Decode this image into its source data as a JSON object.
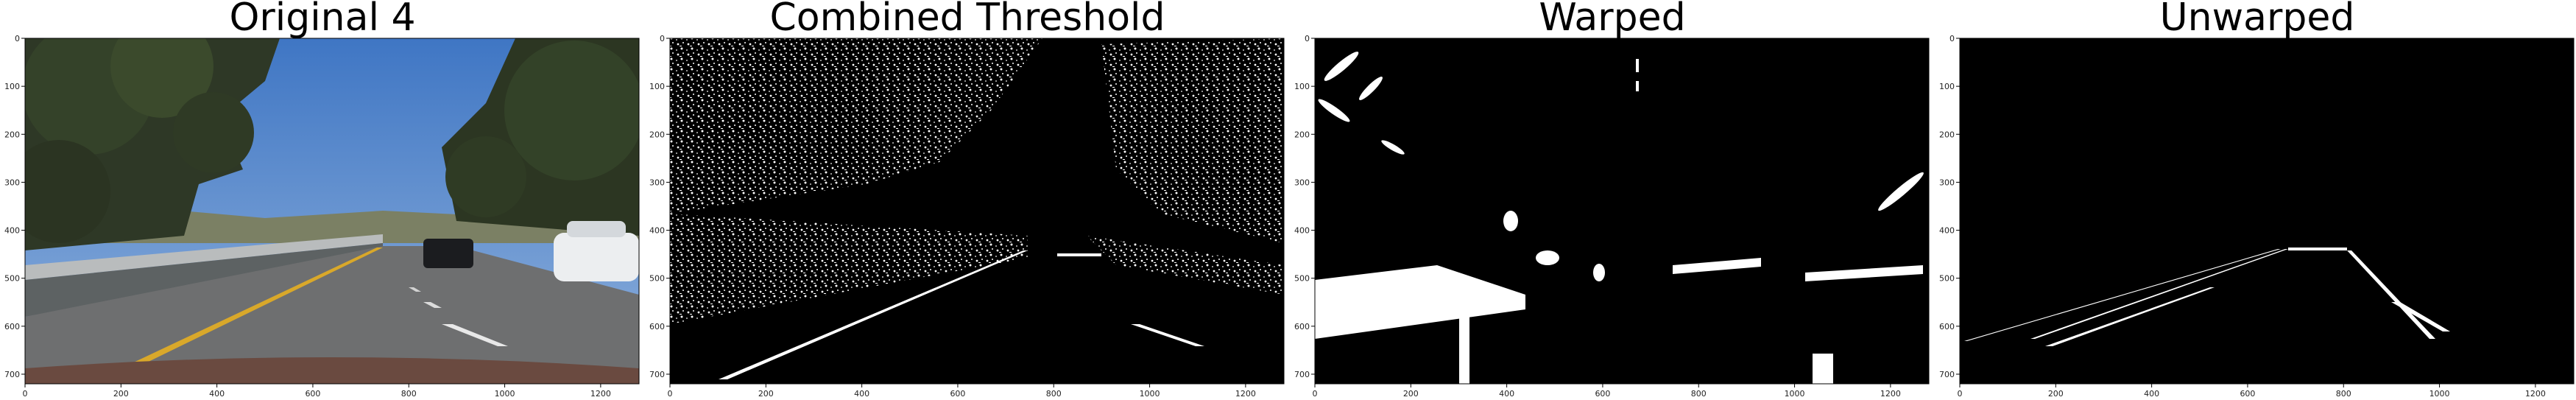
{
  "figure": {
    "panels": [
      {
        "title": "Original 4",
        "x_ticks": [
          "0",
          "200",
          "400",
          "600",
          "800",
          "1000",
          "1200"
        ],
        "y_ticks": [
          "0",
          "100",
          "200",
          "300",
          "400",
          "500",
          "600",
          "700"
        ],
        "x_range": [
          0,
          1280
        ],
        "y_range": [
          0,
          720
        ]
      },
      {
        "title": "Combined Threshold",
        "x_ticks": [
          "0",
          "200",
          "400",
          "600",
          "800",
          "1000",
          "1200"
        ],
        "y_ticks": [
          "0",
          "100",
          "200",
          "300",
          "400",
          "500",
          "600",
          "700"
        ],
        "x_range": [
          0,
          1280
        ],
        "y_range": [
          0,
          720
        ]
      },
      {
        "title": "Warped",
        "x_ticks": [
          "0",
          "200",
          "400",
          "600",
          "800",
          "1000",
          "1200"
        ],
        "y_ticks": [
          "0",
          "100",
          "200",
          "300",
          "400",
          "500",
          "600",
          "700"
        ],
        "x_range": [
          0,
          1280
        ],
        "y_range": [
          0,
          720
        ]
      },
      {
        "title": "Unwarped",
        "x_ticks": [
          "0",
          "200",
          "400",
          "600",
          "800",
          "1000",
          "1200"
        ],
        "y_ticks": [
          "0",
          "100",
          "200",
          "300",
          "400",
          "500",
          "600",
          "700"
        ],
        "x_range": [
          0,
          1280
        ],
        "y_range": [
          0,
          720
        ]
      }
    ],
    "colors": {
      "sky": "#4b7fc9",
      "road": "#6f6f70",
      "lane_yellow": "#d9a82a",
      "tree": "#2d3524",
      "threshold_bg": "#000000",
      "threshold_fg": "#ffffff"
    }
  }
}
